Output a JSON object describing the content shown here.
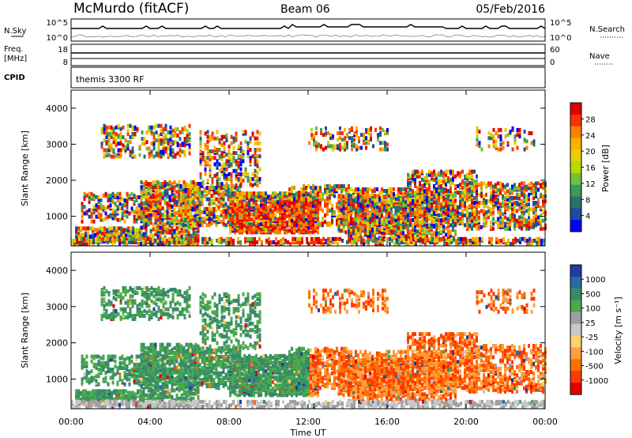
{
  "header": {
    "title": "McMurdo (fitACF)",
    "beam": "Beam 06",
    "date": "05/Feb/2016"
  },
  "strips": {
    "nsky_label": "N.Sky",
    "nsearch_label": "N.Search",
    "freq_label_1": "Freq.",
    "freq_label_2": "[MHz]",
    "nave_label": "Nave",
    "cpid_label": "CPID",
    "cpid_value": "themis 3300 RF",
    "nsky_ticks": [
      "10^5",
      "10^0"
    ],
    "nsearch_ticks": [
      "10^5",
      "10^0"
    ],
    "freq_ticks": [
      "18",
      "8"
    ],
    "nave_ticks": [
      "60",
      "0"
    ]
  },
  "chart_data": [
    {
      "type": "heatmap",
      "name": "power-panel",
      "ylabel": "Slant Range [km]",
      "yticks": [
        1000,
        2000,
        3000,
        4000
      ],
      "ylim": [
        180,
        4500
      ],
      "colorbar": {
        "label": "Power [dB]",
        "ticks": [
          "28",
          "24",
          "20",
          "16",
          "12",
          "8",
          "4"
        ],
        "colors": [
          "#e00000",
          "#ff3000",
          "#ff7f00",
          "#ffb000",
          "#e8d000",
          "#b8d800",
          "#6fc040",
          "#3a9a5a",
          "#2a7070",
          "#1e4aa0",
          "#0000ff"
        ]
      }
    },
    {
      "type": "heatmap",
      "name": "velocity-panel",
      "ylabel": "Slant Range [km]",
      "yticks": [
        1000,
        2000,
        3000,
        4000
      ],
      "ylim": [
        180,
        4500
      ],
      "colorbar": {
        "label": "Velocity [m s⁻¹]",
        "ticks": [
          "1000",
          "500",
          "100",
          "25",
          "-25",
          "-100",
          "-500",
          "-1000"
        ],
        "colors": [
          "#1e3ea0",
          "#2a6aa0",
          "#3a8a6a",
          "#4aaa4a",
          "#a0a0a0",
          "#c8c8c8",
          "#ffd070",
          "#ffa040",
          "#ff7000",
          "#ff3a00",
          "#e00000"
        ]
      }
    }
  ],
  "time_axis": {
    "label": "Time UT",
    "ticks": [
      "00:00",
      "04:00",
      "08:00",
      "12:00",
      "16:00",
      "20:00",
      "00:00"
    ]
  },
  "palette": {
    "ground_scatter": "#b8b8b8"
  }
}
